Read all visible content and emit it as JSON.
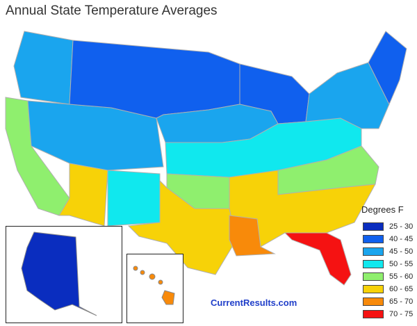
{
  "title": "Annual State Temperature Averages",
  "credit": "CurrentResults.com",
  "legend": {
    "title": "Degrees F",
    "items": [
      {
        "range": "25 - 30",
        "color": "#0a2dbf"
      },
      {
        "range": "40 - 45",
        "color": "#1060ee"
      },
      {
        "range": "45 - 50",
        "color": "#1aa5ee"
      },
      {
        "range": "50 - 55",
        "color": "#10e8ee"
      },
      {
        "range": "55 - 60",
        "color": "#8fef6e"
      },
      {
        "range": "60 - 65",
        "color": "#f7d208"
      },
      {
        "range": "65 - 70",
        "color": "#f88a0a"
      },
      {
        "range": "70 - 75",
        "color": "#f51212"
      }
    ]
  },
  "regions": {
    "north_central": "#1060ee",
    "wisconsin": "#1060ee",
    "northwest": "#1aa5ee",
    "central_plains": "#1aa5ee",
    "california": "#8fef6e",
    "southwest_az": "#f7d208",
    "new_mexico": "#10e8ee",
    "kansas": "#10e8ee",
    "ohio_valley": "#10e8ee",
    "texas": "#f7d208",
    "oklahoma": "#8fef6e",
    "appalachia": "#8fef6e",
    "deep_south": "#f7d208",
    "louisiana": "#f88a0a",
    "florida": "#f51212",
    "northeast": "#1aa5ee",
    "new_england_north": "#1060ee",
    "alaska": "#0a2dbf",
    "hawaii": "#f88a0a"
  }
}
